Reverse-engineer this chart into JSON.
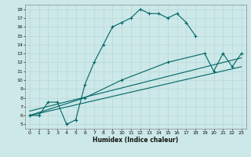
{
  "xlabel": "Humidex (Indice chaleur)",
  "ylabel": "",
  "bg_color": "#cce8e8",
  "grid_color": "#b8d8d8",
  "line_color": "#006666",
  "xlim": [
    -0.5,
    23.5
  ],
  "ylim": [
    4.5,
    18.5
  ],
  "xticks": [
    0,
    1,
    2,
    3,
    4,
    5,
    6,
    7,
    8,
    9,
    10,
    11,
    12,
    13,
    14,
    15,
    16,
    17,
    18,
    19,
    20,
    21,
    22,
    23
  ],
  "yticks": [
    5,
    6,
    7,
    8,
    9,
    10,
    11,
    12,
    13,
    14,
    15,
    16,
    17,
    18
  ],
  "line1_x": [
    0,
    1,
    2,
    3,
    4,
    5,
    6,
    7,
    8,
    9,
    10,
    11,
    12,
    13,
    14,
    15,
    16,
    17,
    18
  ],
  "line1_y": [
    6,
    6,
    7.5,
    7.5,
    5,
    5.5,
    9.5,
    12,
    14,
    16,
    16.5,
    17,
    18,
    17.5,
    17.5,
    17,
    17.5,
    16.5,
    15
  ],
  "line2_x": [
    0,
    6,
    10,
    15,
    19,
    20,
    21,
    22,
    23
  ],
  "line2_y": [
    6,
    8,
    10,
    12,
    13,
    11,
    13,
    11.5,
    13
  ],
  "line3_x": [
    0,
    23
  ],
  "line3_y": [
    6.5,
    12.5
  ],
  "line4_x": [
    0,
    23
  ],
  "line4_y": [
    6,
    11.5
  ]
}
